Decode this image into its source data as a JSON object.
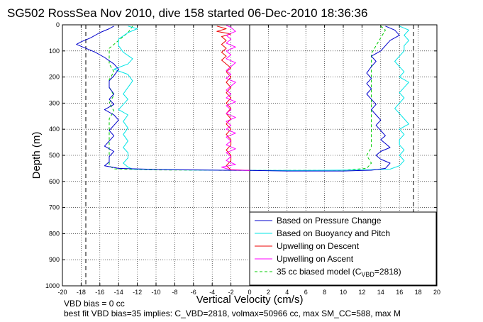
{
  "chart_data": {
    "type": "line",
    "title": "SG502 RossSea Nov 2010, dive 158 started 06-Dec-2010 18:36:36",
    "xlabel": "Vertical Velocity (cm/s)",
    "ylabel": "Depth (m)",
    "xlim": [
      -20,
      20
    ],
    "ylim": [
      0,
      1000
    ],
    "y_reversed": true,
    "grid": true,
    "legend_location": "lower-right",
    "xticks": [
      -20,
      -18,
      -16,
      -14,
      -12,
      -10,
      -8,
      -6,
      -4,
      -2,
      0,
      2,
      4,
      6,
      8,
      10,
      12,
      14,
      16,
      18,
      20
    ],
    "yticks": [
      0,
      100,
      200,
      300,
      400,
      500,
      600,
      700,
      800,
      900,
      1000
    ],
    "reference_lines": [
      {
        "style": "dashed",
        "x": -17.5
      },
      {
        "style": "dashed",
        "x": 17.5
      },
      {
        "style": "solid",
        "x": 0
      }
    ],
    "series": [
      {
        "name": "Based on Pressure Change",
        "color": "#0000cc",
        "points": [
          [
            -14.5,
            5
          ],
          [
            -15,
            15
          ],
          [
            -16,
            30
          ],
          [
            -17,
            50
          ],
          [
            -18,
            65
          ],
          [
            -18.5,
            75
          ],
          [
            -17.5,
            90
          ],
          [
            -16.5,
            105
          ],
          [
            -15.5,
            125
          ],
          [
            -14.5,
            150
          ],
          [
            -14,
            170
          ],
          [
            -14.5,
            195
          ],
          [
            -15,
            215
          ],
          [
            -15,
            240
          ],
          [
            -14.5,
            265
          ],
          [
            -15,
            285
          ],
          [
            -14.5,
            305
          ],
          [
            -15.5,
            325
          ],
          [
            -14.5,
            345
          ],
          [
            -14,
            365
          ],
          [
            -14.5,
            385
          ],
          [
            -15,
            405
          ],
          [
            -14.5,
            425
          ],
          [
            -15,
            445
          ],
          [
            -15.5,
            465
          ],
          [
            -14.5,
            485
          ],
          [
            -15,
            505
          ],
          [
            -15,
            525
          ],
          [
            -15.5,
            540
          ],
          [
            -14,
            550
          ],
          [
            -9,
            555
          ],
          [
            -3,
            557
          ],
          [
            0,
            558
          ],
          [
            4,
            560
          ],
          [
            10,
            560
          ],
          [
            13,
            557
          ],
          [
            14.5,
            550
          ],
          [
            15,
            530
          ],
          [
            14,
            515
          ],
          [
            13.5,
            500
          ],
          [
            14,
            485
          ],
          [
            15,
            470
          ],
          [
            14.5,
            455
          ],
          [
            14,
            440
          ],
          [
            14.5,
            425
          ],
          [
            14,
            405
          ],
          [
            13.5,
            385
          ],
          [
            14,
            365
          ],
          [
            13.5,
            345
          ],
          [
            13,
            325
          ],
          [
            13.5,
            305
          ],
          [
            13,
            285
          ],
          [
            12.5,
            265
          ],
          [
            13,
            245
          ],
          [
            12.5,
            225
          ],
          [
            13,
            205
          ],
          [
            12.5,
            185
          ],
          [
            13,
            160
          ],
          [
            13.5,
            140
          ],
          [
            13,
            120
          ],
          [
            14,
            100
          ],
          [
            14.5,
            80
          ],
          [
            15,
            60
          ],
          [
            16,
            40
          ],
          [
            15.5,
            20
          ],
          [
            14.5,
            5
          ]
        ]
      },
      {
        "name": "Based on Buoyancy and Pitch",
        "color": "#00e5e5",
        "points": [
          [
            -13,
            5
          ],
          [
            -12,
            15
          ],
          [
            -13,
            30
          ],
          [
            -14,
            55
          ],
          [
            -14,
            80
          ],
          [
            -13.5,
            105
          ],
          [
            -12.5,
            130
          ],
          [
            -13,
            150
          ],
          [
            -14.5,
            170
          ],
          [
            -13,
            190
          ],
          [
            -12.5,
            215
          ],
          [
            -13,
            240
          ],
          [
            -13.5,
            265
          ],
          [
            -13,
            285
          ],
          [
            -13.5,
            305
          ],
          [
            -14,
            325
          ],
          [
            -13,
            345
          ],
          [
            -13.5,
            370
          ],
          [
            -13,
            395
          ],
          [
            -13.5,
            420
          ],
          [
            -13,
            445
          ],
          [
            -13.5,
            470
          ],
          [
            -13,
            490
          ],
          [
            -13,
            510
          ],
          [
            -13.5,
            530
          ],
          [
            -13,
            545
          ],
          [
            -12.5,
            553
          ],
          [
            -7,
            556
          ],
          [
            0,
            558
          ],
          [
            6,
            558
          ],
          [
            12,
            556
          ],
          [
            15,
            553
          ],
          [
            16,
            540
          ],
          [
            16.5,
            520
          ],
          [
            16,
            500
          ],
          [
            16.5,
            480
          ],
          [
            16,
            460
          ],
          [
            16,
            440
          ],
          [
            16.5,
            420
          ],
          [
            16,
            400
          ],
          [
            17,
            380
          ],
          [
            16.5,
            360
          ],
          [
            16,
            340
          ],
          [
            15.5,
            320
          ],
          [
            16,
            300
          ],
          [
            16.5,
            280
          ],
          [
            16,
            260
          ],
          [
            16.5,
            240
          ],
          [
            17,
            220
          ],
          [
            16,
            200
          ],
          [
            16.5,
            180
          ],
          [
            16,
            160
          ],
          [
            15.5,
            140
          ],
          [
            16,
            120
          ],
          [
            16.5,
            100
          ],
          [
            16.5,
            80
          ],
          [
            17,
            60
          ],
          [
            16.5,
            40
          ],
          [
            17,
            20
          ],
          [
            16,
            5
          ]
        ]
      },
      {
        "name": "Upwelling on Descent",
        "color": "#ee0000",
        "points": [
          [
            -3.5,
            5
          ],
          [
            -2.5,
            15
          ],
          [
            -3.5,
            25
          ],
          [
            -2,
            35
          ],
          [
            -3,
            45
          ],
          [
            -2.5,
            60
          ],
          [
            -3,
            75
          ],
          [
            -2.5,
            90
          ],
          [
            -3,
            105
          ],
          [
            -2.5,
            120
          ],
          [
            -3,
            135
          ],
          [
            -2.5,
            150
          ],
          [
            -2,
            165
          ],
          [
            -2.5,
            180
          ],
          [
            -2,
            200
          ],
          [
            -2.5,
            220
          ],
          [
            -2,
            240
          ],
          [
            -2.5,
            260
          ],
          [
            -2,
            280
          ],
          [
            -2.5,
            300
          ],
          [
            -2,
            320
          ],
          [
            -2.5,
            340
          ],
          [
            -2,
            360
          ],
          [
            -2.5,
            380
          ],
          [
            -2,
            400
          ],
          [
            -2.5,
            420
          ],
          [
            -2,
            440
          ],
          [
            -2,
            460
          ],
          [
            -2.5,
            480
          ],
          [
            -2,
            500
          ],
          [
            -2,
            520
          ],
          [
            -2.5,
            540
          ],
          [
            -2,
            555
          ],
          [
            0,
            558
          ]
        ]
      },
      {
        "name": "Upwelling on Ascent",
        "color": "#ff00ff",
        "points": [
          [
            0,
            558
          ],
          [
            -2,
            556
          ],
          [
            -3,
            545
          ],
          [
            -1.5,
            535
          ],
          [
            -2.5,
            520
          ],
          [
            -2,
            505
          ],
          [
            -2.5,
            490
          ],
          [
            -1.5,
            475
          ],
          [
            -2.5,
            460
          ],
          [
            -2,
            445
          ],
          [
            -2.5,
            430
          ],
          [
            -1.5,
            415
          ],
          [
            -2.5,
            400
          ],
          [
            -2,
            385
          ],
          [
            -2.5,
            370
          ],
          [
            -1.5,
            355
          ],
          [
            -2.5,
            340
          ],
          [
            -2,
            325
          ],
          [
            -2.5,
            310
          ],
          [
            -1.5,
            295
          ],
          [
            -2.5,
            280
          ],
          [
            -2,
            265
          ],
          [
            -2.5,
            250
          ],
          [
            -2,
            235
          ],
          [
            -1.5,
            220
          ],
          [
            -2.5,
            205
          ],
          [
            -2,
            190
          ],
          [
            -2.5,
            175
          ],
          [
            -2,
            160
          ],
          [
            -1.5,
            145
          ],
          [
            -2.5,
            130
          ],
          [
            -2,
            115
          ],
          [
            -2.5,
            100
          ],
          [
            -1.5,
            85
          ],
          [
            -2.5,
            70
          ],
          [
            -2,
            55
          ],
          [
            -2.5,
            40
          ],
          [
            -1.5,
            25
          ],
          [
            -2,
            10
          ],
          [
            -2.5,
            2
          ]
        ]
      },
      {
        "name": "35 cc biased model",
        "color": "#00cc00",
        "style": "dashed",
        "points": [
          [
            -12.5,
            5
          ],
          [
            -13,
            30
          ],
          [
            -14,
            60
          ],
          [
            -15,
            90
          ],
          [
            -15,
            120
          ],
          [
            -15,
            150
          ],
          [
            -14.5,
            180
          ],
          [
            -15,
            210
          ],
          [
            -15,
            240
          ],
          [
            -14.5,
            270
          ],
          [
            -15,
            300
          ],
          [
            -14.5,
            330
          ],
          [
            -15,
            360
          ],
          [
            -15,
            390
          ],
          [
            -15,
            420
          ],
          [
            -15,
            450
          ],
          [
            -15,
            480
          ],
          [
            -15,
            510
          ],
          [
            -15,
            540
          ],
          [
            -14.5,
            552
          ],
          [
            -10,
            556
          ],
          [
            0,
            558
          ],
          [
            10,
            557
          ],
          [
            12.5,
            550
          ],
          [
            13,
            530
          ],
          [
            12.5,
            500
          ],
          [
            13,
            470
          ],
          [
            13,
            440
          ],
          [
            13,
            410
          ],
          [
            13,
            380
          ],
          [
            13,
            350
          ],
          [
            13,
            320
          ],
          [
            13,
            290
          ],
          [
            13,
            260
          ],
          [
            13,
            230
          ],
          [
            13,
            200
          ],
          [
            13,
            170
          ],
          [
            13,
            140
          ],
          [
            13,
            110
          ],
          [
            13.5,
            80
          ],
          [
            14,
            50
          ],
          [
            14.5,
            20
          ],
          [
            14,
            5
          ]
        ]
      }
    ],
    "legend": [
      "Based on Pressure Change",
      "Based on Buoyancy and Pitch",
      "Upwelling on Descent",
      "Upwelling on Ascent",
      "35 cc biased model (C",
      "VBD",
      "=2818)"
    ],
    "notes": [
      "VBD bias = 0 cc",
      "best fit VBD bias=35 implies: C_VBD=2818, volmax=50966 cc, max SM_CC=588, max M"
    ]
  }
}
